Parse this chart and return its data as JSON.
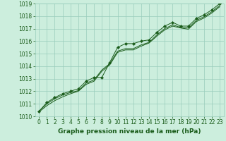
{
  "x": [
    0,
    1,
    2,
    3,
    4,
    5,
    6,
    7,
    8,
    9,
    10,
    11,
    12,
    13,
    14,
    15,
    16,
    17,
    18,
    19,
    20,
    21,
    22,
    23
  ],
  "line1": [
    1010.4,
    1011.1,
    1011.5,
    1011.8,
    1012.0,
    1012.2,
    1012.8,
    1013.1,
    1013.1,
    1014.3,
    1015.5,
    1015.8,
    1015.8,
    1016.0,
    1016.1,
    1016.7,
    1017.2,
    1017.5,
    1017.2,
    1017.2,
    1017.8,
    1018.1,
    1018.5,
    1019.0
  ],
  "line2": [
    1010.4,
    1011.0,
    1011.4,
    1011.7,
    1011.9,
    1012.05,
    1012.65,
    1012.9,
    1013.7,
    1014.2,
    1015.2,
    1015.4,
    1015.4,
    1015.7,
    1015.9,
    1016.5,
    1017.0,
    1017.3,
    1017.1,
    1017.05,
    1017.65,
    1017.95,
    1018.35,
    1018.85
  ],
  "line3": [
    1010.35,
    1010.85,
    1011.25,
    1011.55,
    1011.8,
    1012.0,
    1012.55,
    1012.8,
    1013.6,
    1014.1,
    1015.1,
    1015.3,
    1015.3,
    1015.6,
    1015.85,
    1016.4,
    1016.9,
    1017.2,
    1017.05,
    1016.95,
    1017.55,
    1017.85,
    1018.25,
    1018.75
  ],
  "ylim": [
    1010,
    1019
  ],
  "xlim": [
    0,
    23
  ],
  "yticks": [
    1010,
    1011,
    1012,
    1013,
    1014,
    1015,
    1016,
    1017,
    1018,
    1019
  ],
  "xticks": [
    0,
    1,
    2,
    3,
    4,
    5,
    6,
    7,
    8,
    9,
    10,
    11,
    12,
    13,
    14,
    15,
    16,
    17,
    18,
    19,
    20,
    21,
    22,
    23
  ],
  "xlabel": "Graphe pression niveau de la mer (hPa)",
  "line_color": "#1a5c1a",
  "bg_color": "#cceedd",
  "grid_color": "#99ccbb",
  "marker": "D",
  "marker_size": 2.2,
  "font_color": "#1a5c1a",
  "tick_fontsize": 5.5,
  "xlabel_fontsize": 6.5
}
